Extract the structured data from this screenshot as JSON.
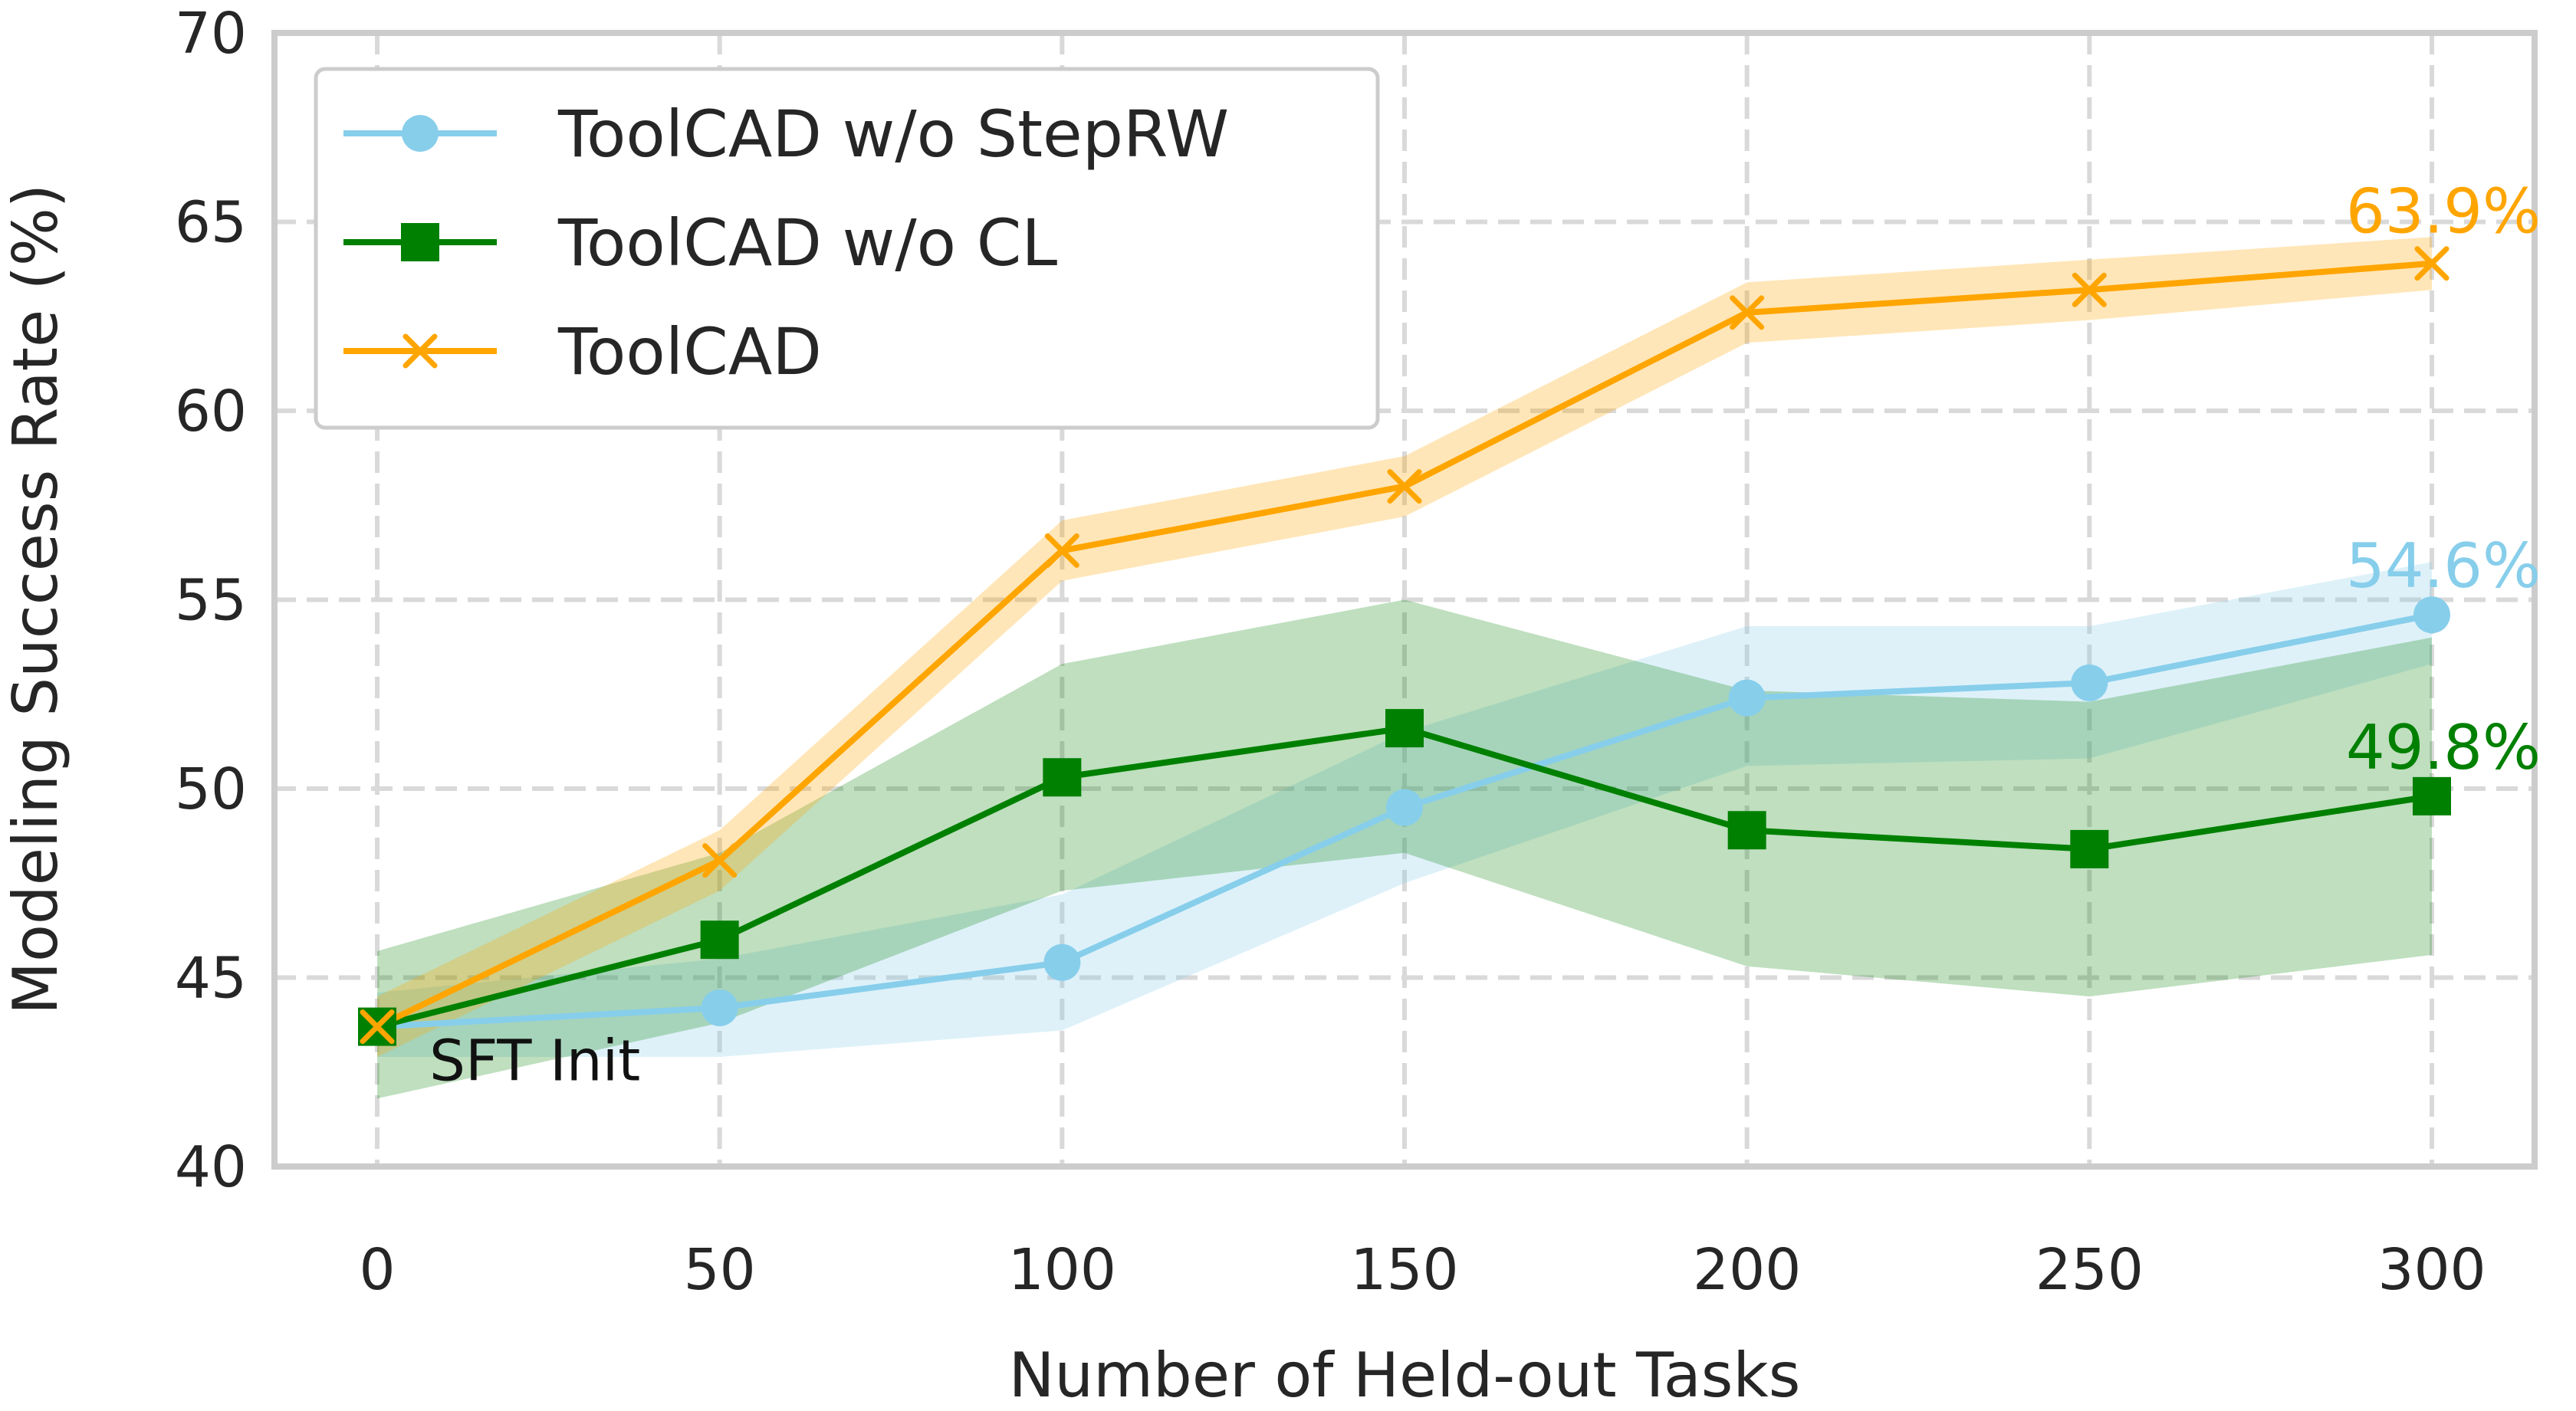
{
  "chart_data": {
    "type": "line",
    "title": "",
    "xlabel": "Number of Held-out Tasks",
    "ylabel": "Modeling Success Rate (%)",
    "x": [
      0,
      50,
      100,
      150,
      200,
      250,
      300
    ],
    "xlim": [
      -15,
      315
    ],
    "ylim": [
      40,
      70
    ],
    "xticks": [
      "0",
      "50",
      "100",
      "150",
      "200",
      "250",
      "300"
    ],
    "yticks": [
      "40",
      "45",
      "50",
      "55",
      "60",
      "65",
      "70"
    ],
    "grid": true,
    "legend_position": "top-left",
    "series": [
      {
        "name": "ToolCAD w/o StepRW",
        "color": "#87CEEB",
        "marker": "circle",
        "values": [
          43.7,
          44.2,
          45.4,
          49.5,
          52.4,
          52.8,
          54.6
        ],
        "lower": [
          42.9,
          42.9,
          43.6,
          47.5,
          50.6,
          50.8,
          53.3
        ],
        "upper": [
          44.6,
          45.5,
          47.2,
          51.5,
          54.3,
          54.3,
          56.0
        ],
        "end_label": "54.6%"
      },
      {
        "name": "ToolCAD w/o CL",
        "color": "#008000",
        "marker": "square",
        "values": [
          43.7,
          46.0,
          50.3,
          51.6,
          48.9,
          48.4,
          49.8
        ],
        "lower": [
          41.8,
          43.8,
          47.3,
          48.3,
          45.3,
          44.5,
          45.6
        ],
        "upper": [
          45.7,
          48.3,
          53.3,
          55.0,
          52.6,
          52.3,
          54.0
        ],
        "end_label": "49.8%"
      },
      {
        "name": "ToolCAD",
        "color": "#FFA500",
        "marker": "x",
        "values": [
          43.7,
          48.1,
          56.3,
          58.0,
          62.6,
          63.2,
          63.9
        ],
        "lower": [
          42.9,
          47.3,
          55.5,
          57.2,
          61.8,
          62.4,
          63.2
        ],
        "upper": [
          44.5,
          48.9,
          57.1,
          58.8,
          63.4,
          64.0,
          64.6
        ],
        "end_label": "63.9%"
      }
    ],
    "annotations": [
      {
        "text": "SFT Init",
        "x": 0,
        "y": 43.7
      }
    ]
  }
}
